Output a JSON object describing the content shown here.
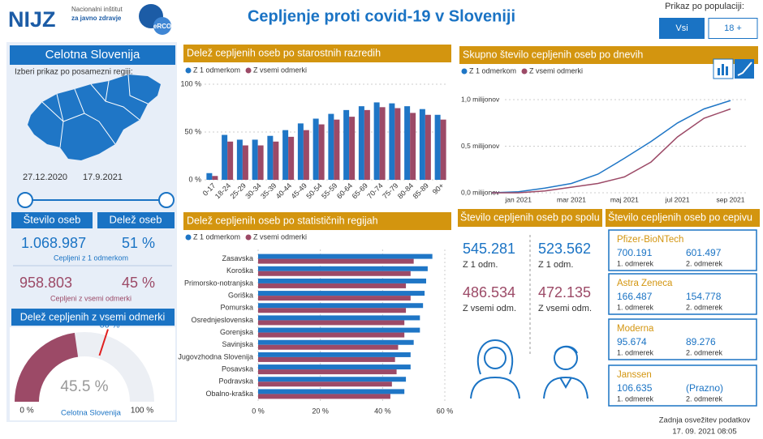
{
  "header": {
    "logo": "NIJZ",
    "logo_subtitle": [
      "Nacionalni inštitut",
      "za javno zdravje"
    ],
    "badge": "eRCO",
    "title": "Cepljenje proti covid-19 v Sloveniji",
    "population_label": "Prikaz po populaciji:",
    "population_options": [
      "Vsi",
      "18 +"
    ]
  },
  "left_panel": {
    "title": "Celotna Slovenija",
    "prompt": "Izberi prikaz po posamezni regiji:",
    "date_range": [
      "27.12.2020",
      "17.9.2021"
    ],
    "columns": [
      "Število oseb",
      "Delež oseb"
    ],
    "rows": [
      {
        "count": "1.068.987",
        "share": "51 %",
        "label": "Cepljeni z 1 odmerkom"
      },
      {
        "count": "958.803",
        "share": "45 %",
        "label": "Cepljeni z vsemi odmerki"
      }
    ]
  },
  "gender": {
    "title": "Število cepljenih oseb po spolu",
    "columns": [
      {
        "first": "545.281",
        "first_label": "Z 1 odm.",
        "all": "486.534",
        "all_label": "Z vsemi odm."
      },
      {
        "first": "523.562",
        "first_label": "Z 1 odm.",
        "all": "472.135",
        "all_label": "Z vsemi odm."
      }
    ]
  },
  "vaccines": {
    "title": "Število cepljenih oseb po cepivu",
    "dose_labels": [
      "1. odmerek",
      "2. odmerek"
    ],
    "items": [
      {
        "name": "Pfizer-BioNTech",
        "doses": [
          "700.191",
          "601.497"
        ]
      },
      {
        "name": "Astra Zeneca",
        "doses": [
          "166.487",
          "154.778"
        ]
      },
      {
        "name": "Moderna",
        "doses": [
          "95.674",
          "89.276"
        ]
      },
      {
        "name": "Janssen",
        "doses": [
          "106.635",
          "(Prazno)"
        ]
      }
    ]
  },
  "footer": {
    "label": "Zadnja osvežitev podatkov",
    "updated": "17. 09. 2021 08:05"
  },
  "chart_data": [
    {
      "type": "bar",
      "title": "Delež cepljenih oseb po starostnih razredih",
      "categories": [
        "0-17",
        "18-24",
        "25-29",
        "30-34",
        "35-39",
        "40-44",
        "45-49",
        "50-54",
        "55-59",
        "60-64",
        "65-69",
        "70-74",
        "75-79",
        "80-84",
        "85-89",
        "90+"
      ],
      "series": [
        {
          "name": "Z 1 odmerkom",
          "color": "#1f76c6",
          "values": [
            7,
            47,
            42,
            42,
            46,
            52,
            59,
            64,
            69,
            73,
            77,
            81,
            80,
            77,
            74,
            68
          ]
        },
        {
          "name": "Z vsemi odmerki",
          "color": "#9c4a67",
          "values": [
            4,
            40,
            36,
            36,
            40,
            45,
            52,
            58,
            63,
            66,
            73,
            76,
            75,
            70,
            68,
            63
          ]
        }
      ],
      "ylim": [
        0,
        100
      ],
      "yticks": [
        {
          "value": 0,
          "label": "0 %"
        },
        {
          "value": 50,
          "label": "50 %"
        },
        {
          "value": 100,
          "label": "100 %"
        }
      ],
      "grid": true
    },
    {
      "type": "line",
      "title": "Skupno število cepljenih oseb po dnevih",
      "x": [
        "2020-12",
        "2021-01",
        "2021-02",
        "2021-03",
        "2021-04",
        "2021-05",
        "2021-06",
        "2021-07",
        "2021-08",
        "2021-09"
      ],
      "series": [
        {
          "name": "Z 1 odmerkom",
          "color": "#1f76c6",
          "values": [
            0,
            0.01,
            0.05,
            0.1,
            0.2,
            0.37,
            0.55,
            0.75,
            0.9,
            0.99
          ]
        },
        {
          "name": "Z vsemi odmerki",
          "color": "#9c4a67",
          "values": [
            0,
            0,
            0.02,
            0.06,
            0.1,
            0.17,
            0.33,
            0.6,
            0.8,
            0.9
          ]
        }
      ],
      "xlim": [
        "2020-12",
        "2021-09"
      ],
      "xticks": [
        {
          "value": "2021-01",
          "label": "jan 2021"
        },
        {
          "value": "2021-03",
          "label": "mar 2021"
        },
        {
          "value": "2021-05",
          "label": "maj 2021"
        },
        {
          "value": "2021-07",
          "label": "jul 2021"
        },
        {
          "value": "2021-09",
          "label": "sep 2021"
        }
      ],
      "ylim": [
        0,
        1.2
      ],
      "yticks": [
        {
          "value": 0,
          "label": "0,0 milijonov"
        },
        {
          "value": 0.5,
          "label": "0,5 milijonov"
        },
        {
          "value": 1,
          "label": "1,0 milijonov"
        }
      ],
      "grid": true
    },
    {
      "type": "bar",
      "orientation": "horizontal",
      "title": "Delež cepljenih oseb po statističnih regijah",
      "categories": [
        "Zasavska",
        "Koroška",
        "Primorsko-notranjska",
        "Goriška",
        "Pomurska",
        "Osrednjeslovenska",
        "Gorenjska",
        "Savinjska",
        "Jugovzhodna Slovenija",
        "Posavska",
        "Podravska",
        "Obalno-kraška"
      ],
      "series": [
        {
          "name": "Z 1 odmerkom",
          "color": "#1f76c6",
          "values": [
            56,
            54.5,
            54,
            53.5,
            53,
            52,
            52,
            50,
            49,
            49,
            47.5,
            47
          ]
        },
        {
          "name": "Z vsemi odmerki",
          "color": "#9c4a67",
          "values": [
            50,
            49,
            47.5,
            49,
            47.5,
            47,
            47,
            45,
            44,
            44.5,
            43,
            42.5
          ]
        }
      ],
      "xlim": [
        0,
        60
      ],
      "xticks": [
        {
          "value": 0,
          "label": "0 %"
        },
        {
          "value": 20,
          "label": "20 %"
        },
        {
          "value": 40,
          "label": "40 %"
        },
        {
          "value": 60,
          "label": "60 %"
        }
      ],
      "grid": true
    },
    {
      "type": "gauge",
      "title": "Delež cepljenih z vsemi odmerki",
      "subtitle": "Celotna Slovenija",
      "values": [
        45.5
      ],
      "value_labels": [
        "45.5 %"
      ],
      "color": "#9c4a67",
      "target": {
        "value": 60,
        "label": "60 %"
      },
      "ylim": [
        0,
        100
      ],
      "yticks": [
        {
          "value": 0,
          "label": "0 %"
        },
        {
          "value": 100,
          "label": "100 %"
        }
      ]
    }
  ]
}
